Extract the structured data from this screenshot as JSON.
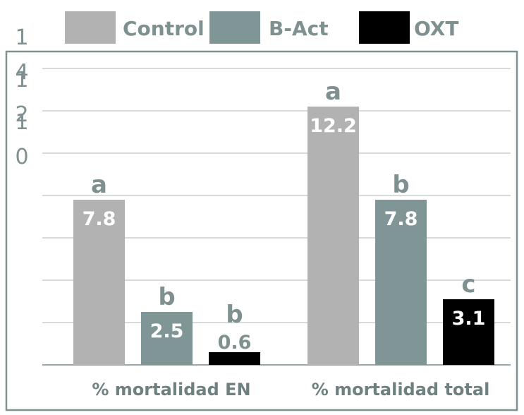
{
  "chart_data": {
    "type": "bar",
    "categories": [
      "% mortalidad EN",
      "% mortalidad total"
    ],
    "series": [
      {
        "name": "Control",
        "values": [
          7.8,
          12.2
        ],
        "labels": [
          "7.8",
          "12.2"
        ],
        "letters": [
          "a",
          "a"
        ]
      },
      {
        "name": "B-Act",
        "values": [
          2.5,
          7.8
        ],
        "labels": [
          "2.5",
          "7.8"
        ],
        "letters": [
          "b",
          "b"
        ]
      },
      {
        "name": "OXT",
        "values": [
          0.6,
          3.1
        ],
        "labels": [
          "0.6",
          "3.1"
        ],
        "letters": [
          "b",
          "c"
        ]
      }
    ],
    "colors": [
      "#b2b2b2",
      "#7f9596",
      "#000000"
    ],
    "y_tick_labels": [
      {
        "value": 14,
        "lines": [
          "1",
          "4"
        ]
      },
      {
        "value": 12,
        "lines": [
          "1",
          "2"
        ]
      },
      {
        "value": 10,
        "lines": [
          "1",
          "0"
        ]
      }
    ],
    "ylim": [
      0,
      14
    ],
    "grid": true,
    "legend_position": "top",
    "title": "",
    "xlabel": "",
    "ylabel": ""
  }
}
